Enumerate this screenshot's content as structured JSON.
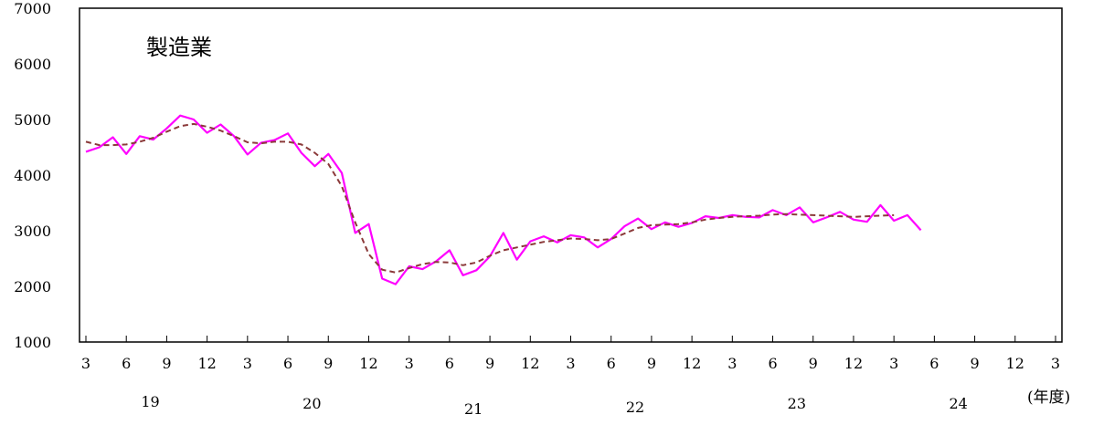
{
  "chart_data": {
    "type": "line",
    "title": "",
    "panel_label": "製造業",
    "ylim": [
      1000,
      7000
    ],
    "y_ticks": [
      1000,
      2000,
      3000,
      4000,
      5000,
      6000,
      7000
    ],
    "x_range": [
      0,
      72
    ],
    "x_tick_labels": [
      "3",
      "6",
      "9",
      "12",
      "3",
      "6",
      "9",
      "12",
      "3",
      "6",
      "9",
      "12",
      "3",
      "6",
      "9",
      "12",
      "3",
      "6",
      "9",
      "12",
      "3",
      "6",
      "9",
      "12",
      "3"
    ],
    "fiscal_year_labels": [
      {
        "label": "19",
        "center": 7.5
      },
      {
        "label": "20",
        "center": 19.5
      },
      {
        "label": "21",
        "center": 31.5
      },
      {
        "label": "22",
        "center": 43.5
      },
      {
        "label": "23",
        "center": 55.5
      },
      {
        "label": "24",
        "center": 67.5
      }
    ],
    "x_unit_label": "(年度)",
    "grid": false,
    "series": [
      {
        "style": "solid",
        "color": "#ff00ff",
        "x_start": 0,
        "values": [
          4420,
          4500,
          4680,
          4380,
          4700,
          4640,
          4840,
          5070,
          5000,
          4760,
          4910,
          4700,
          4370,
          4580,
          4630,
          4750,
          4400,
          4160,
          4380,
          4040,
          2960,
          3120,
          2140,
          2040,
          2360,
          2310,
          2450,
          2650,
          2200,
          2290,
          2540,
          2960,
          2480,
          2810,
          2900,
          2790,
          2920,
          2880,
          2700,
          2850,
          3080,
          3220,
          3030,
          3150,
          3070,
          3140,
          3260,
          3230,
          3280,
          3250,
          3240,
          3370,
          3280,
          3420,
          3150,
          3240,
          3340,
          3200,
          3160,
          3460,
          3180,
          3280,
          3010
        ]
      },
      {
        "style": "dashed",
        "color": "#8b3a3a",
        "x_start": 0,
        "values": [
          4600,
          4540,
          4540,
          4550,
          4600,
          4670,
          4780,
          4880,
          4920,
          4870,
          4800,
          4700,
          4590,
          4570,
          4600,
          4600,
          4550,
          4400,
          4200,
          3800,
          3150,
          2580,
          2300,
          2250,
          2330,
          2400,
          2440,
          2430,
          2380,
          2430,
          2550,
          2650,
          2700,
          2750,
          2800,
          2830,
          2860,
          2850,
          2830,
          2850,
          2950,
          3050,
          3100,
          3110,
          3120,
          3150,
          3200,
          3230,
          3250,
          3260,
          3270,
          3290,
          3300,
          3290,
          3280,
          3270,
          3260,
          3250,
          3260,
          3270,
          3280
        ]
      }
    ]
  }
}
